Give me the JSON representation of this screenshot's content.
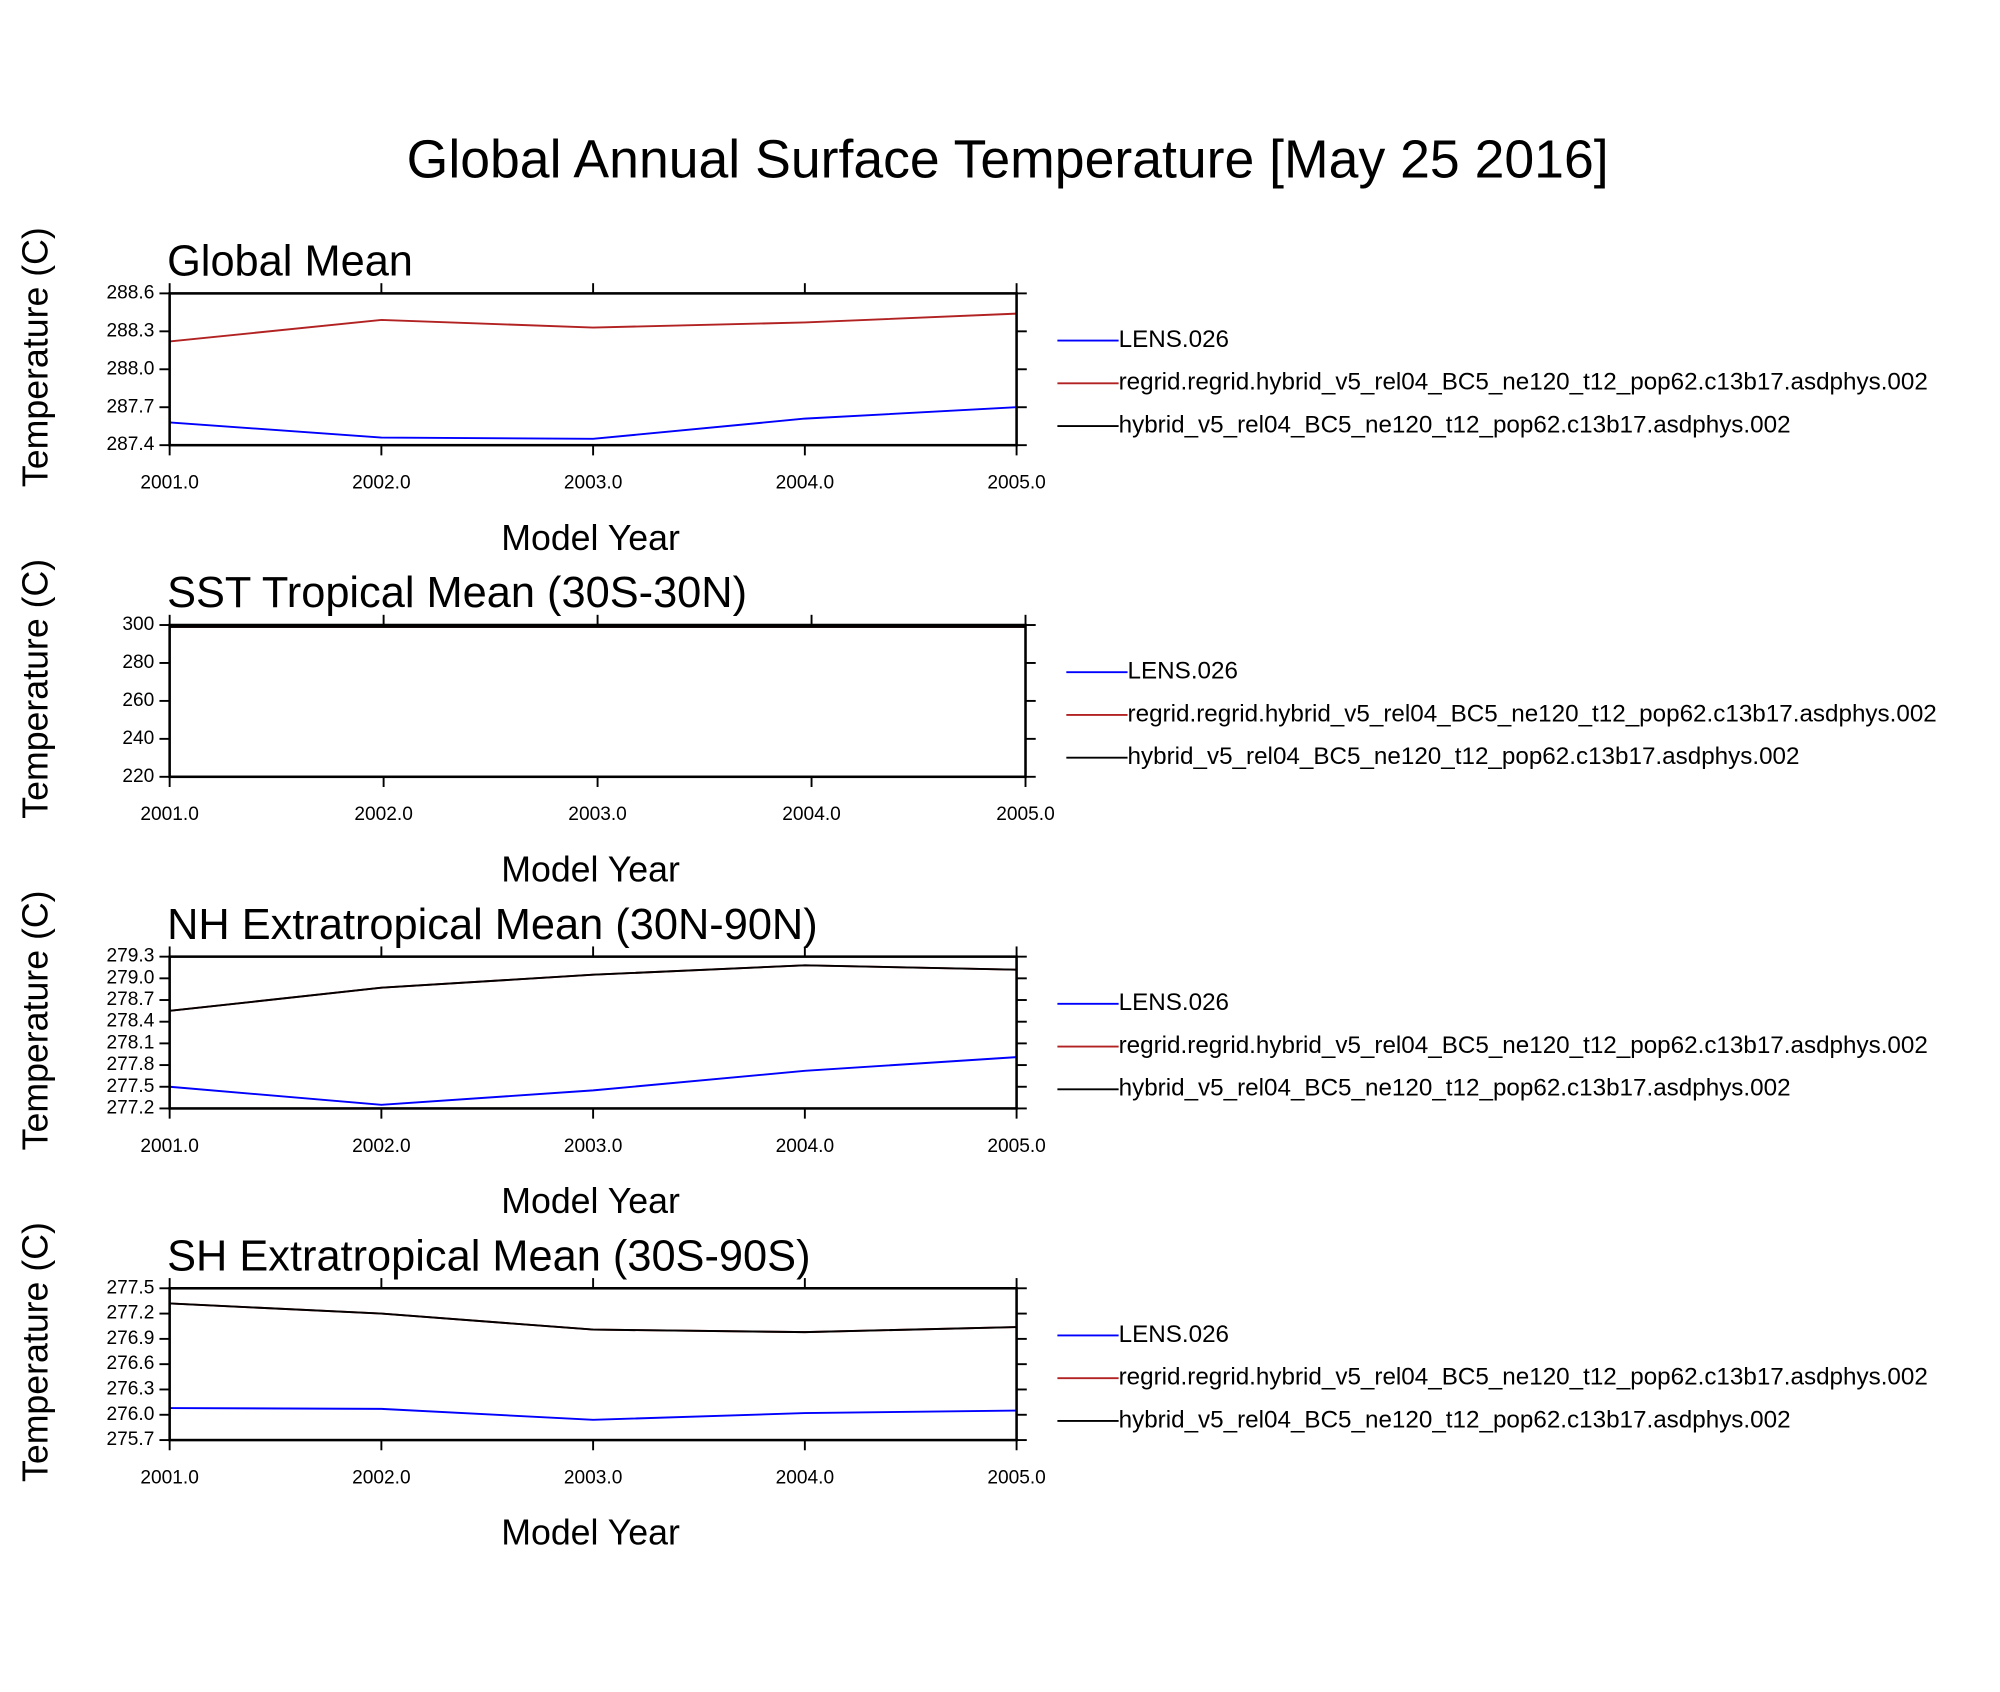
{
  "title": "Global Annual Surface Temperature [May 25 2016]",
  "chart_data": [
    {
      "type": "line",
      "title": "Global Mean",
      "xlabel": "Model Year",
      "ylabel": "Temperature (C)",
      "x": [
        2001,
        2002,
        2003,
        2004,
        2005
      ],
      "xlim": [
        2001,
        2005
      ],
      "xticks": [
        {
          "value": 2001,
          "label": "2001.0"
        },
        {
          "value": 2002,
          "label": "2002.0"
        },
        {
          "value": 2003,
          "label": "2003.0"
        },
        {
          "value": 2004,
          "label": "2004.0"
        },
        {
          "value": 2005,
          "label": "2005.0"
        }
      ],
      "ylim": [
        287.4,
        288.6
      ],
      "yticks": [
        287.4,
        287.7,
        {
          "value": 288,
          "label": "288.0"
        },
        288.3,
        288.6
      ],
      "series": [
        {
          "name": "LENS.026",
          "color": "#0000ff",
          "values": [
            287.58,
            287.46,
            287.45,
            287.61,
            287.7
          ]
        },
        {
          "name": "regrid.regrid.hybrid_v5_rel04_BC5_ne120_t12_pop62.c13b17.asdphys.002",
          "color": "#b22222",
          "values": [
            288.22,
            288.39,
            288.33,
            288.37,
            288.44
          ]
        },
        {
          "name": "hybrid_v5_rel04_BC5_ne120_t12_pop62.c13b17.asdphys.002",
          "color": "#000000",
          "values": [
            null,
            null,
            null,
            null,
            null
          ]
        }
      ]
    },
    {
      "type": "line",
      "title": "SST Tropical Mean (30S-30N)",
      "xlabel": "Model Year",
      "ylabel": "Temperature (C)",
      "x": [
        2001,
        2002,
        2003,
        2004,
        2005
      ],
      "xlim": [
        2001,
        2005
      ],
      "xticks": [
        {
          "value": 2001,
          "label": "2001.0"
        },
        {
          "value": 2002,
          "label": "2002.0"
        },
        {
          "value": 2003,
          "label": "2003.0"
        },
        {
          "value": 2004,
          "label": "2004.0"
        },
        {
          "value": 2005,
          "label": "2005.0"
        }
      ],
      "ylim": [
        220,
        300
      ],
      "yticks": [
        220,
        240,
        260,
        280,
        300
      ],
      "series": [
        {
          "name": "LENS.026",
          "color": "#0000ff",
          "values": [
            299.3,
            299.3,
            299.3,
            299.3,
            299.3
          ]
        },
        {
          "name": "regrid.regrid.hybrid_v5_rel04_BC5_ne120_t12_pop62.c13b17.asdphys.002",
          "color": "#b22222",
          "values": [
            299,
            299,
            299,
            299,
            299
          ]
        },
        {
          "name": "hybrid_v5_rel04_BC5_ne120_t12_pop62.c13b17.asdphys.002",
          "color": "#000000",
          "values": [
            299,
            299,
            299,
            299,
            299
          ]
        }
      ]
    },
    {
      "type": "line",
      "title": "NH Extratropical Mean (30N-90N)",
      "xlabel": "Model Year",
      "ylabel": "Temperature (C)",
      "x": [
        2001,
        2002,
        2003,
        2004,
        2005
      ],
      "xlim": [
        2001,
        2005
      ],
      "xticks": [
        {
          "value": 2001,
          "label": "2001.0"
        },
        {
          "value": 2002,
          "label": "2002.0"
        },
        {
          "value": 2003,
          "label": "2003.0"
        },
        {
          "value": 2004,
          "label": "2004.0"
        },
        {
          "value": 2005,
          "label": "2005.0"
        }
      ],
      "ylim": [
        277.2,
        279.3
      ],
      "yticks": [
        277.2,
        277.5,
        277.8,
        278.1,
        278.4,
        278.7,
        {
          "value": 279,
          "label": "279.0"
        },
        279.3
      ],
      "series": [
        {
          "name": "LENS.026",
          "color": "#0000ff",
          "values": [
            277.5,
            277.25,
            277.45,
            277.72,
            277.91
          ]
        },
        {
          "name": "regrid.regrid.hybrid_v5_rel04_BC5_ne120_t12_pop62.c13b17.asdphys.002",
          "color": "#b22222",
          "values": [
            278.55,
            278.87,
            279.05,
            279.18,
            279.12
          ]
        },
        {
          "name": "hybrid_v5_rel04_BC5_ne120_t12_pop62.c13b17.asdphys.002",
          "color": "#000000",
          "values": [
            278.55,
            278.87,
            279.05,
            279.18,
            279.12
          ]
        }
      ]
    },
    {
      "type": "line",
      "title": "SH Extratropical Mean (30S-90S)",
      "xlabel": "Model Year",
      "ylabel": "Temperature (C)",
      "x": [
        2001,
        2002,
        2003,
        2004,
        2005
      ],
      "xlim": [
        2001,
        2005
      ],
      "xticks": [
        {
          "value": 2001,
          "label": "2001.0"
        },
        {
          "value": 2002,
          "label": "2002.0"
        },
        {
          "value": 2003,
          "label": "2003.0"
        },
        {
          "value": 2004,
          "label": "2004.0"
        },
        {
          "value": 2005,
          "label": "2005.0"
        }
      ],
      "ylim": [
        275.7,
        277.5
      ],
      "yticks": [
        275.7,
        {
          "value": 276,
          "label": "276.0"
        },
        276.3,
        276.6,
        276.9,
        277.2,
        277.5
      ],
      "series": [
        {
          "name": "LENS.026",
          "color": "#0000ff",
          "values": [
            276.08,
            276.07,
            275.94,
            276.02,
            276.05
          ]
        },
        {
          "name": "regrid.regrid.hybrid_v5_rel04_BC5_ne120_t12_pop62.c13b17.asdphys.002",
          "color": "#b22222",
          "values": [
            277.32,
            277.2,
            277.01,
            276.98,
            277.04
          ]
        },
        {
          "name": "hybrid_v5_rel04_BC5_ne120_t12_pop62.c13b17.asdphys.002",
          "color": "#000000",
          "values": [
            277.32,
            277.2,
            277.01,
            276.98,
            277.04
          ]
        }
      ]
    }
  ]
}
